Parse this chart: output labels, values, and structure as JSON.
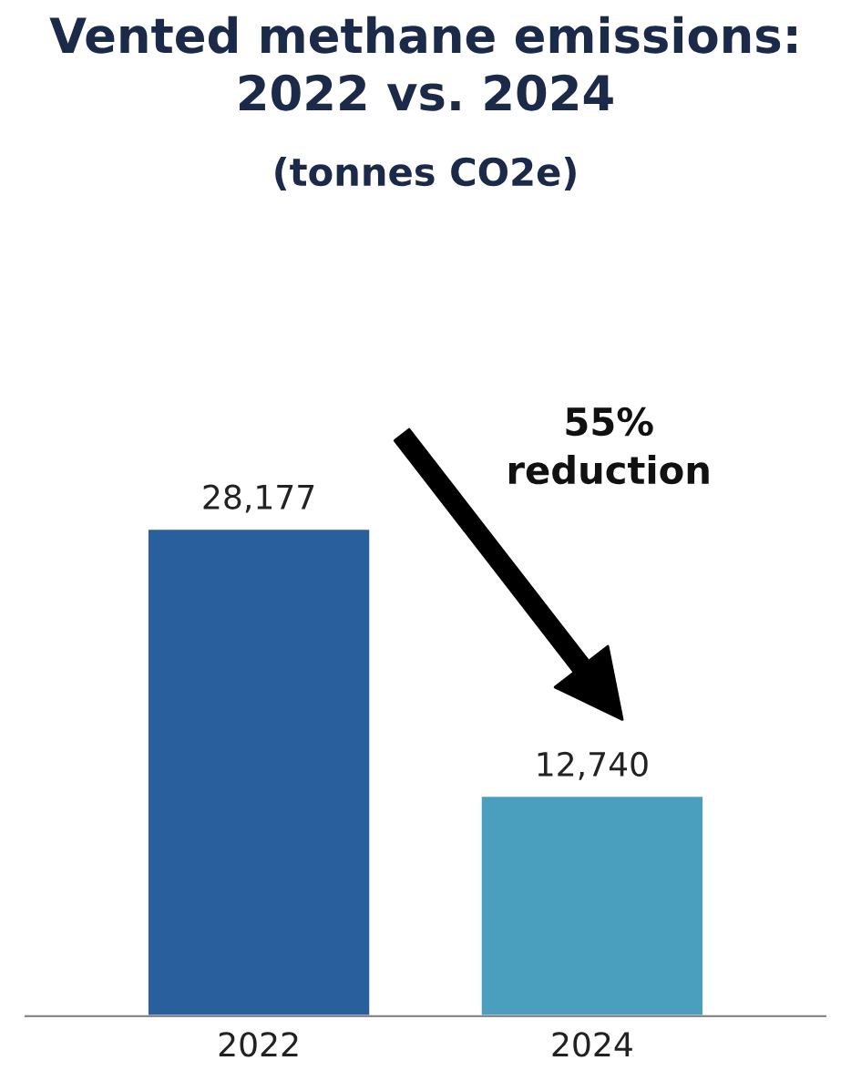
{
  "chart_data": {
    "type": "bar",
    "title": "Vented methane emissions:\n2022 vs. 2024",
    "subtitle": "(tonnes CO2e)",
    "categories": [
      "2022",
      "2024"
    ],
    "values": [
      28177,
      12740
    ],
    "colors": [
      "#2a5f9e",
      "#4a9fbe"
    ],
    "value_labels": [
      "28,177",
      "12,740"
    ],
    "annotations": [
      "55%\nreduction"
    ],
    "grid": false,
    "legend": false
  }
}
